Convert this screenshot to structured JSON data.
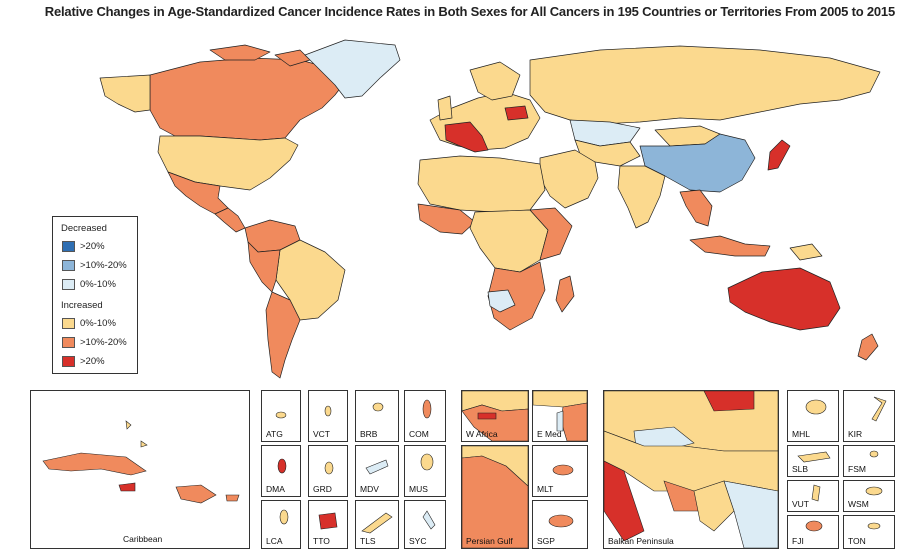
{
  "title": "Relative Changes in Age-Standardized Cancer Incidence Rates in Both Sexes for All Cancers in 195 Countries or Territories From 2005 to 2015",
  "colors": {
    "dec_gt20": "#2f6fb3",
    "dec_10_20": "#8db5d8",
    "dec_0_10": "#dcecf5",
    "inc_0_10": "#fbd98e",
    "inc_10_20": "#f08a5d",
    "inc_gt20": "#d7302a",
    "ocean": "#ffffff",
    "border": "#222222"
  },
  "legend": {
    "decreased_label": "Decreased",
    "increased_label": "Increased",
    "items": [
      {
        "label": ">20%",
        "color": "#2f6fb3"
      },
      {
        "label": ">10%-20%",
        "color": "#8db5d8"
      },
      {
        "label": "0%-10%",
        "color": "#dcecf5"
      },
      {
        "label": "0%-10%",
        "color": "#fbd98e"
      },
      {
        "label": ">10%-20%",
        "color": "#f08a5d"
      },
      {
        "label": ">20%",
        "color": "#d7302a"
      }
    ]
  },
  "insets": {
    "caribbean": "Caribbean",
    "atg": "ATG",
    "vct": "VCT",
    "brb": "BRB",
    "com": "COM",
    "dma": "DMA",
    "grd": "GRD",
    "mdv": "MDV",
    "mus": "MUS",
    "lca": "LCA",
    "tto": "TTO",
    "tls": "TLS",
    "syc": "SYC",
    "w_africa": "W Africa",
    "e_med": "E Med",
    "persian_gulf": "Persian Gulf",
    "mlt": "MLT",
    "sgp": "SGP",
    "balkan": "Balkan Peninsula",
    "mhl": "MHL",
    "kir": "KIR",
    "slb": "SLB",
    "fsm": "FSM",
    "vut": "VUT",
    "wsm": "WSM",
    "fji": "FJI",
    "ton": "TON"
  }
}
